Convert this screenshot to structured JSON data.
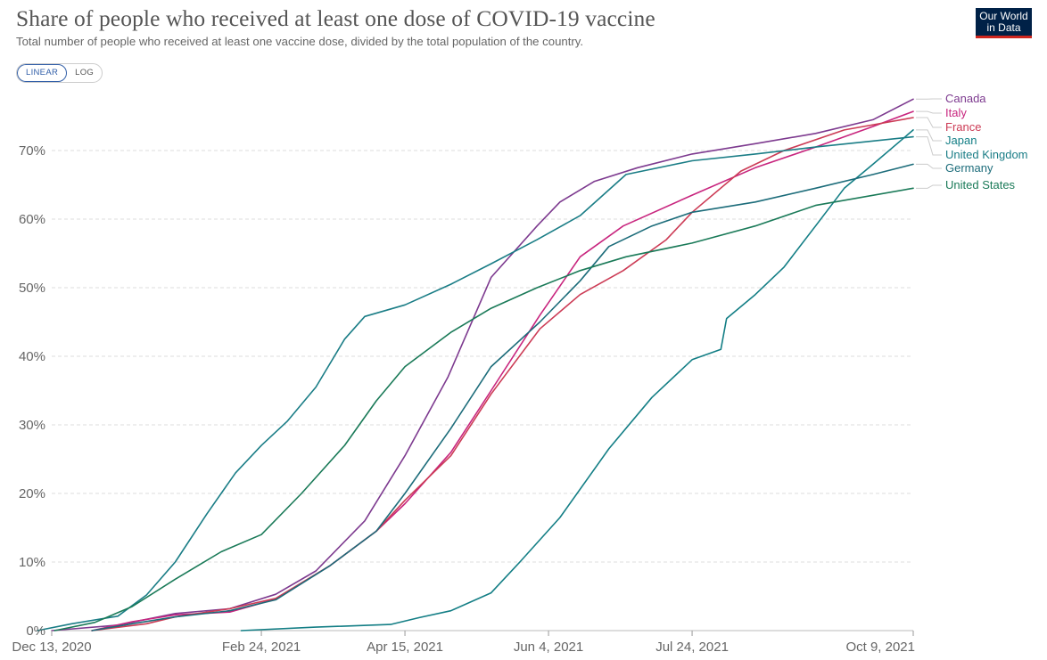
{
  "header": {
    "title": "Share of people who received at least one dose of COVID-19 vaccine",
    "subtitle": "Total number of people who received at least one vaccine dose, divided by the total population of the country.",
    "logo_line1": "Our World",
    "logo_line2": "in Data"
  },
  "controls": {
    "linear_label": "LINEAR",
    "log_label": "LOG",
    "selected": "LINEAR"
  },
  "chart_data": {
    "type": "line",
    "title": "Share of people who received at least one dose of COVID-19 vaccine",
    "xlabel": "",
    "ylabel": "",
    "x_start": "2020-12-13",
    "x_end": "2021-10-09",
    "ylim": [
      0,
      70
    ],
    "grid": true,
    "y_ticks": [
      0,
      10,
      20,
      30,
      40,
      50,
      60,
      70
    ],
    "y_tick_labels": [
      "0%",
      "10%",
      "20%",
      "30%",
      "40%",
      "50%",
      "60%",
      "70%"
    ],
    "x_ticks": [
      "2020-12-13",
      "2021-02-24",
      "2021-04-15",
      "2021-06-04",
      "2021-07-24",
      "2021-10-09"
    ],
    "x_tick_labels": [
      "Dec 13, 2020",
      "Feb 24, 2021",
      "Apr 15, 2021",
      "Jun 4, 2021",
      "Jul 24, 2021",
      "Oct 9, 2021"
    ],
    "legend_placement": "right, inline labels",
    "series": [
      {
        "name": "Canada",
        "color": "#7d3a8f",
        "points": [
          [
            "2020-12-13",
            0
          ],
          [
            "2021-01-05",
            0.8
          ],
          [
            "2021-01-25",
            2.5
          ],
          [
            "2021-02-13",
            3.2
          ],
          [
            "2021-03-01",
            5.3
          ],
          [
            "2021-03-15",
            8.7
          ],
          [
            "2021-04-01",
            16
          ],
          [
            "2021-04-15",
            25.5
          ],
          [
            "2021-04-30",
            37
          ],
          [
            "2021-05-15",
            51.5
          ],
          [
            "2021-05-31",
            59
          ],
          [
            "2021-06-08",
            62.5
          ],
          [
            "2021-06-20",
            65.5
          ],
          [
            "2021-07-05",
            67.5
          ],
          [
            "2021-07-24",
            69.5
          ],
          [
            "2021-08-15",
            71
          ],
          [
            "2021-09-05",
            72.5
          ],
          [
            "2021-09-25",
            74.5
          ],
          [
            "2021-10-09",
            77.5
          ]
        ]
      },
      {
        "name": "Italy",
        "color": "#c8257e",
        "points": [
          [
            "2020-12-27",
            0
          ],
          [
            "2021-01-10",
            1.3
          ],
          [
            "2021-01-25",
            2.3
          ],
          [
            "2021-02-13",
            2.7
          ],
          [
            "2021-03-01",
            4.6
          ],
          [
            "2021-03-20",
            9.5
          ],
          [
            "2021-04-05",
            14.5
          ],
          [
            "2021-04-15",
            18.5
          ],
          [
            "2021-05-01",
            26
          ],
          [
            "2021-05-15",
            35
          ],
          [
            "2021-06-01",
            46
          ],
          [
            "2021-06-15",
            54.5
          ],
          [
            "2021-06-30",
            59
          ],
          [
            "2021-07-24",
            63.5
          ],
          [
            "2021-08-15",
            67.5
          ],
          [
            "2021-09-05",
            70.5
          ],
          [
            "2021-09-25",
            73.5
          ],
          [
            "2021-10-09",
            75.7
          ]
        ]
      },
      {
        "name": "France",
        "color": "#cc3b55",
        "points": [
          [
            "2020-12-27",
            0
          ],
          [
            "2021-01-15",
            1
          ],
          [
            "2021-01-25",
            2
          ],
          [
            "2021-02-13",
            3.2
          ],
          [
            "2021-03-01",
            4.7
          ],
          [
            "2021-03-20",
            9.5
          ],
          [
            "2021-04-05",
            14.5
          ],
          [
            "2021-04-15",
            19
          ],
          [
            "2021-05-01",
            25.5
          ],
          [
            "2021-05-15",
            34.5
          ],
          [
            "2021-06-01",
            44
          ],
          [
            "2021-06-15",
            49
          ],
          [
            "2021-06-30",
            52.5
          ],
          [
            "2021-07-15",
            57
          ],
          [
            "2021-07-24",
            61
          ],
          [
            "2021-08-10",
            67
          ],
          [
            "2021-08-25",
            70
          ],
          [
            "2021-09-15",
            73
          ],
          [
            "2021-10-09",
            74.8
          ]
        ]
      },
      {
        "name": "Japan",
        "color": "#137e85",
        "points": [
          [
            "2021-02-17",
            0
          ],
          [
            "2021-03-15",
            0.5
          ],
          [
            "2021-04-10",
            0.9
          ],
          [
            "2021-04-20",
            1.9
          ],
          [
            "2021-05-01",
            2.9
          ],
          [
            "2021-05-15",
            5.5
          ],
          [
            "2021-05-25",
            10
          ],
          [
            "2021-06-08",
            16.5
          ],
          [
            "2021-06-25",
            26.5
          ],
          [
            "2021-07-10",
            34
          ],
          [
            "2021-07-24",
            39.5
          ],
          [
            "2021-08-03",
            41
          ],
          [
            "2021-08-05",
            45.5
          ],
          [
            "2021-08-15",
            49
          ],
          [
            "2021-08-25",
            53
          ],
          [
            "2021-09-05",
            59
          ],
          [
            "2021-09-15",
            64.5
          ],
          [
            "2021-09-25",
            68
          ],
          [
            "2021-10-09",
            73
          ]
        ]
      },
      {
        "name": "United Kingdom",
        "color": "#1a7d86",
        "points": [
          [
            "2020-12-08",
            0
          ],
          [
            "2020-12-20",
            1
          ],
          [
            "2021-01-05",
            2.1
          ],
          [
            "2021-01-15",
            5.2
          ],
          [
            "2021-01-25",
            10
          ],
          [
            "2021-02-05",
            17
          ],
          [
            "2021-02-15",
            23
          ],
          [
            "2021-02-24",
            27
          ],
          [
            "2021-03-05",
            30.5
          ],
          [
            "2021-03-15",
            35.5
          ],
          [
            "2021-03-25",
            42.5
          ],
          [
            "2021-04-01",
            45.8
          ],
          [
            "2021-04-15",
            47.5
          ],
          [
            "2021-05-01",
            50.5
          ],
          [
            "2021-05-15",
            53.5
          ],
          [
            "2021-05-31",
            57
          ],
          [
            "2021-06-15",
            60.5
          ],
          [
            "2021-07-01",
            66.5
          ],
          [
            "2021-07-24",
            68.5
          ],
          [
            "2021-08-15",
            69.5
          ],
          [
            "2021-09-05",
            70.5
          ],
          [
            "2021-10-09",
            72
          ]
        ]
      },
      {
        "name": "Germany",
        "color": "#1c6c7a",
        "points": [
          [
            "2020-12-27",
            0
          ],
          [
            "2021-01-10",
            1
          ],
          [
            "2021-01-25",
            2
          ],
          [
            "2021-02-13",
            2.9
          ],
          [
            "2021-03-01",
            4.5
          ],
          [
            "2021-03-20",
            9.5
          ],
          [
            "2021-04-05",
            14.5
          ],
          [
            "2021-04-15",
            20
          ],
          [
            "2021-05-01",
            29.5
          ],
          [
            "2021-05-15",
            38.5
          ],
          [
            "2021-06-01",
            45
          ],
          [
            "2021-06-15",
            51
          ],
          [
            "2021-06-25",
            56
          ],
          [
            "2021-07-10",
            59
          ],
          [
            "2021-07-24",
            61
          ],
          [
            "2021-08-15",
            62.5
          ],
          [
            "2021-09-05",
            64.5
          ],
          [
            "2021-09-25",
            66.5
          ],
          [
            "2021-10-09",
            68
          ]
        ]
      },
      {
        "name": "United States",
        "color": "#1a7a58",
        "points": [
          [
            "2020-12-14",
            0
          ],
          [
            "2020-12-28",
            1.2
          ],
          [
            "2021-01-10",
            3.5
          ],
          [
            "2021-01-25",
            7.5
          ],
          [
            "2021-02-10",
            11.5
          ],
          [
            "2021-02-24",
            14
          ],
          [
            "2021-03-10",
            20
          ],
          [
            "2021-03-25",
            27
          ],
          [
            "2021-04-05",
            33.5
          ],
          [
            "2021-04-15",
            38.5
          ],
          [
            "2021-05-01",
            43.5
          ],
          [
            "2021-05-15",
            47
          ],
          [
            "2021-05-31",
            50
          ],
          [
            "2021-06-15",
            52.5
          ],
          [
            "2021-07-01",
            54.5
          ],
          [
            "2021-07-24",
            56.5
          ],
          [
            "2021-08-15",
            59
          ],
          [
            "2021-09-05",
            62
          ],
          [
            "2021-10-09",
            64.5
          ]
        ]
      }
    ]
  }
}
